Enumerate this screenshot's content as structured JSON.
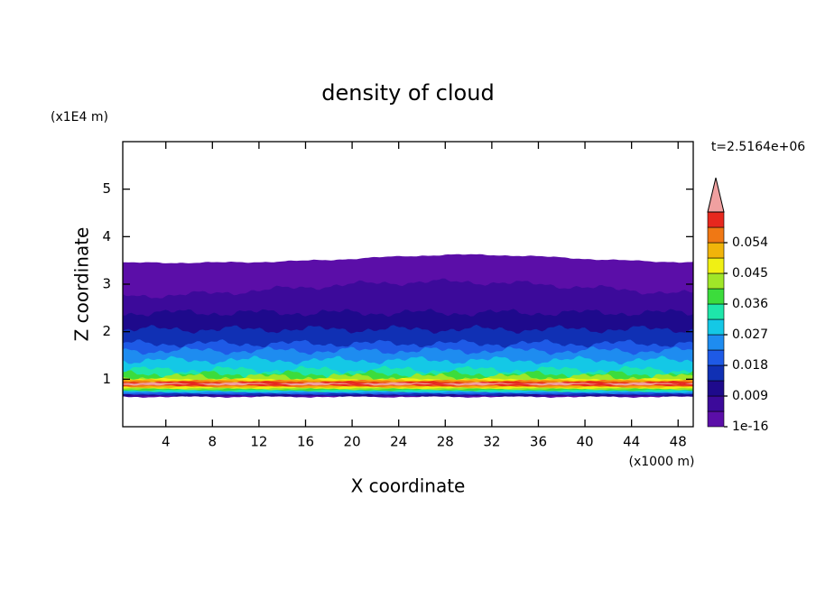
{
  "chart_data": {
    "type": "contour",
    "title": "density of cloud",
    "x_label": "X coordinate",
    "y_label": "Z coordinate",
    "x_unit": "(x1000 m)",
    "y_unit": "(x1E4 m)",
    "time_label": "t=2.5164e+06",
    "xlim": [
      0.3,
      49.3
    ],
    "xticks": [
      4,
      8,
      12,
      16,
      20,
      24,
      28,
      32,
      36,
      40,
      44,
      48
    ],
    "ylim": [
      0,
      6
    ],
    "yticks": [
      1,
      2,
      3,
      4,
      5
    ],
    "colorbar": {
      "lim": [
        1e-16,
        0.063
      ],
      "ticks": [
        1e-16,
        0.009,
        0.018,
        0.027,
        0.036,
        0.045,
        0.054
      ],
      "colors": [
        "#5b0ea8",
        "#3c0a9a",
        "#1e0a8c",
        "#1030b4",
        "#1e5ae6",
        "#1e8cf0",
        "#14c8e6",
        "#1ee6aa",
        "#3cdc3c",
        "#a0e628",
        "#f0f014",
        "#f0b40a",
        "#f07814",
        "#e6281e"
      ],
      "extend_color": "#f0a0a0"
    }
  }
}
